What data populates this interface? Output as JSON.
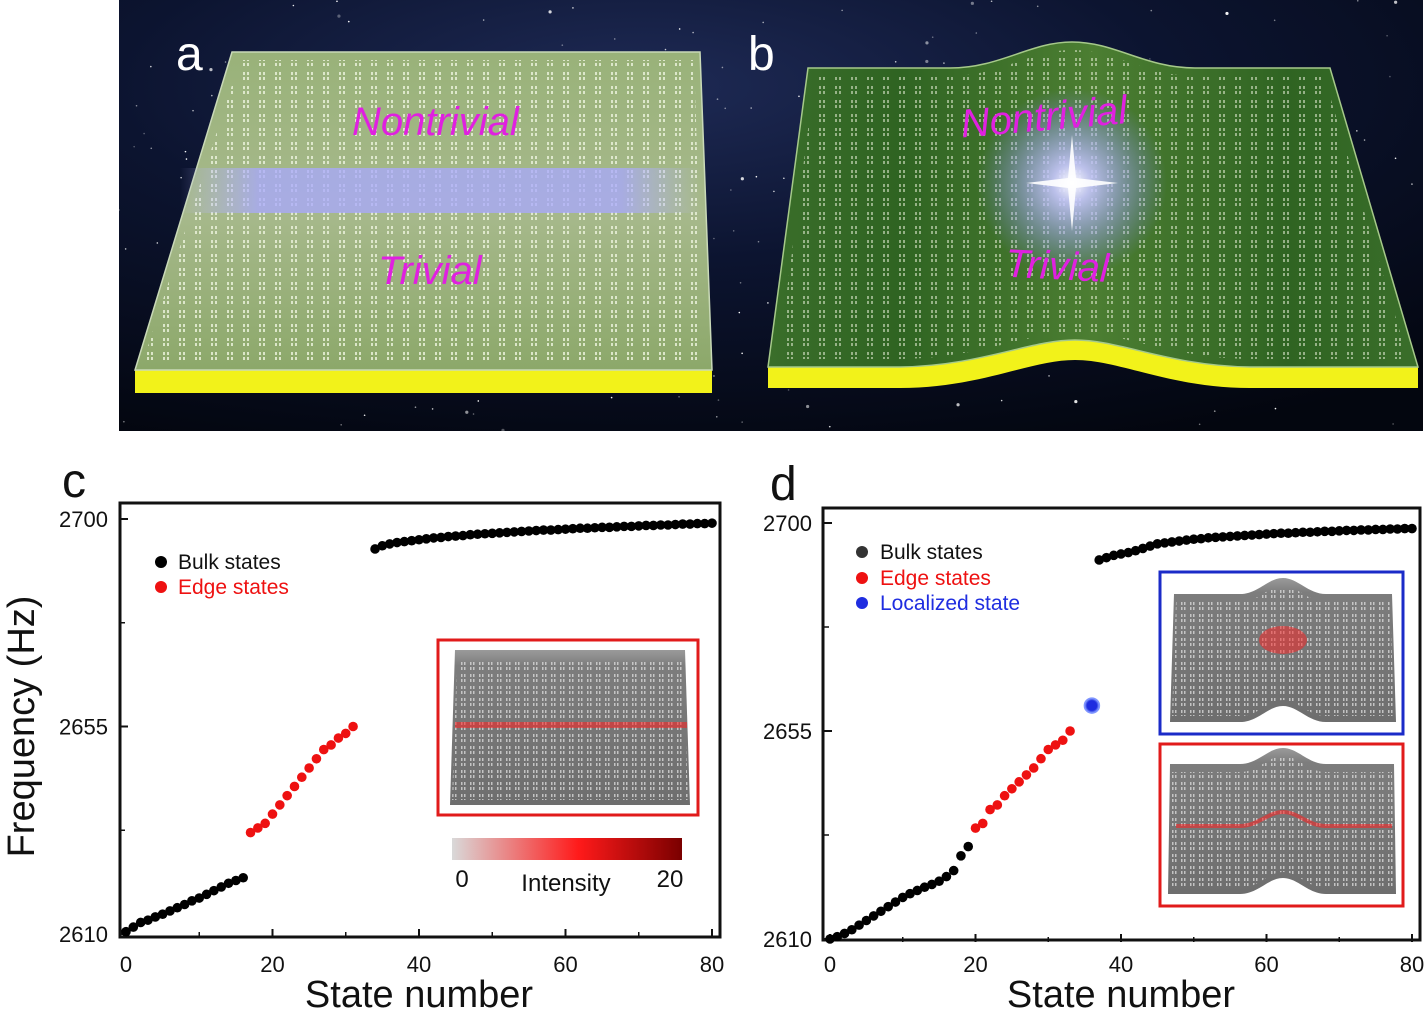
{
  "panels": {
    "a": {
      "letter": "a",
      "nontrivial_label": "Nontrivial",
      "trivial_label": "Trivial"
    },
    "b": {
      "letter": "b",
      "nontrivial_label": "Nontrivial",
      "trivial_label": "Trivial"
    },
    "c": {
      "letter": "c"
    },
    "d": {
      "letter": "d"
    }
  },
  "colorbar": {
    "min_label": "0",
    "max_label": "20",
    "title": "Intensity",
    "colors": [
      "#d9d9d9",
      "#ff1a1a",
      "#7a0000"
    ]
  },
  "colors": {
    "bulk": "#000000",
    "edge": "#ee1111",
    "localized": "#1f2de0",
    "region_label": "#e020e0",
    "substrate": "#f2f21a",
    "plate_green": "#3d7a28",
    "inset_c_border": "#e11b1b",
    "inset_d_top_border": "#1b2bc8",
    "inset_d_bottom_border": "#e11b1b"
  },
  "chart_data": [
    {
      "type": "scatter",
      "panel": "c",
      "xlabel": "State number",
      "ylabel": "Frequency (Hz)",
      "xlim": [
        0,
        80
      ],
      "ylim": [
        2610,
        2700
      ],
      "xticks": [
        0,
        20,
        40,
        60,
        80
      ],
      "yticks": [
        2610,
        2655,
        2700
      ],
      "legend": "upper-left",
      "series": [
        {
          "name": "Bulk states",
          "color": "#000000",
          "x": [
            0,
            1,
            2,
            3,
            4,
            5,
            6,
            7,
            8,
            9,
            10,
            11,
            12,
            13,
            14,
            15,
            16,
            34,
            35,
            36,
            37,
            38,
            39,
            40,
            41,
            42,
            43,
            44,
            45,
            46,
            47,
            48,
            49,
            50,
            51,
            52,
            53,
            54,
            55,
            56,
            57,
            58,
            59,
            60,
            61,
            62,
            63,
            64,
            65,
            66,
            67,
            68,
            69,
            70,
            71,
            72,
            73,
            74,
            75,
            76,
            77,
            78,
            79,
            80
          ],
          "y": [
            2610.5,
            2611.5,
            2612.5,
            2613,
            2613.7,
            2614.3,
            2615,
            2615.7,
            2616.4,
            2617.2,
            2617.8,
            2618.6,
            2619.4,
            2620.2,
            2621,
            2621.6,
            2622.2,
            2693.5,
            2694.2,
            2694.6,
            2694.9,
            2695.1,
            2695.3,
            2695.5,
            2695.7,
            2695.9,
            2696,
            2696.2,
            2696.3,
            2696.4,
            2696.6,
            2696.7,
            2696.8,
            2696.9,
            2697,
            2697.1,
            2697.2,
            2697.3,
            2697.4,
            2697.5,
            2697.6,
            2697.6,
            2697.7,
            2697.8,
            2697.9,
            2698,
            2698,
            2698.1,
            2698.2,
            2698.2,
            2698.3,
            2698.4,
            2698.4,
            2698.5,
            2698.6,
            2698.6,
            2698.7,
            2698.7,
            2698.8,
            2698.9,
            2698.9,
            2699,
            2699,
            2699.1
          ]
        },
        {
          "name": "Edge states",
          "color": "#ee1111",
          "x": [
            17,
            18,
            19,
            20,
            21,
            22,
            23,
            24,
            25,
            26,
            27,
            28,
            29,
            30,
            31
          ],
          "y": [
            2632,
            2633,
            2634,
            2636,
            2638,
            2640,
            2642,
            2644,
            2646,
            2648,
            2650,
            2651,
            2652.5,
            2653.5,
            2655
          ]
        }
      ]
    },
    {
      "type": "scatter",
      "panel": "d",
      "xlabel": "State number",
      "ylabel": "",
      "xlim": [
        0,
        80
      ],
      "ylim": [
        2610,
        2700
      ],
      "xticks": [
        0,
        20,
        40,
        60,
        80
      ],
      "yticks": [
        2610,
        2655,
        2700
      ],
      "legend": "upper-left",
      "series": [
        {
          "name": "Bulk states",
          "color": "#000000",
          "x": [
            0,
            1,
            2,
            3,
            4,
            5,
            6,
            7,
            8,
            9,
            10,
            11,
            12,
            13,
            14,
            15,
            16,
            17,
            18,
            19,
            37,
            38,
            39,
            40,
            41,
            42,
            43,
            44,
            45,
            46,
            47,
            48,
            49,
            50,
            51,
            52,
            53,
            54,
            55,
            56,
            57,
            58,
            59,
            60,
            61,
            62,
            63,
            64,
            65,
            66,
            67,
            68,
            69,
            70,
            71,
            72,
            73,
            74,
            75,
            76,
            77,
            78,
            79,
            80
          ],
          "y": [
            2610,
            2610.5,
            2611.2,
            2612,
            2613,
            2614,
            2615,
            2616,
            2617,
            2618,
            2619,
            2619.8,
            2620.5,
            2621.2,
            2621.8,
            2622.5,
            2623.5,
            2624.8,
            2628,
            2630,
            2692,
            2692.5,
            2693,
            2693.3,
            2693.6,
            2694,
            2694.5,
            2695,
            2695.5,
            2695.7,
            2695.9,
            2696.1,
            2696.3,
            2696.5,
            2696.6,
            2696.8,
            2696.9,
            2697,
            2697.1,
            2697.2,
            2697.3,
            2697.4,
            2697.5,
            2697.6,
            2697.7,
            2697.8,
            2697.8,
            2697.9,
            2698,
            2698,
            2698.1,
            2698.2,
            2698.2,
            2698.3,
            2698.4,
            2698.4,
            2698.5,
            2698.5,
            2698.6,
            2698.6,
            2698.7,
            2698.7,
            2698.8,
            2698.8
          ]
        },
        {
          "name": "Edge states",
          "color": "#ee1111",
          "x": [
            20,
            21,
            22,
            23,
            24,
            25,
            26,
            27,
            28,
            29,
            30,
            31,
            32,
            33
          ],
          "y": [
            2634,
            2635,
            2638,
            2639,
            2641,
            2642.5,
            2644,
            2645.5,
            2647,
            2649,
            2651,
            2652,
            2653,
            2655
          ]
        },
        {
          "name": "Localized state",
          "color": "#1f2de0",
          "x": [
            36
          ],
          "y": [
            2660.5
          ]
        }
      ]
    }
  ]
}
